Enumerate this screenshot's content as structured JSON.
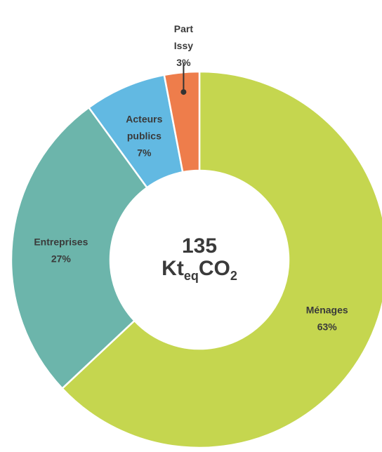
{
  "chart_data": {
    "type": "donut",
    "categories": [
      "Ménages",
      "Entreprises",
      "Acteurs publics",
      "Part Issy"
    ],
    "values": [
      63,
      27,
      7,
      3
    ],
    "value_labels": [
      "63%",
      "27%",
      "7%",
      "3%"
    ],
    "colors": [
      "#c5d64f",
      "#6cb5ab",
      "#62b9e2",
      "#ee7d4b"
    ],
    "center_value": 135,
    "center_unit": [
      "Kt",
      "eq",
      "CO",
      "2"
    ]
  }
}
